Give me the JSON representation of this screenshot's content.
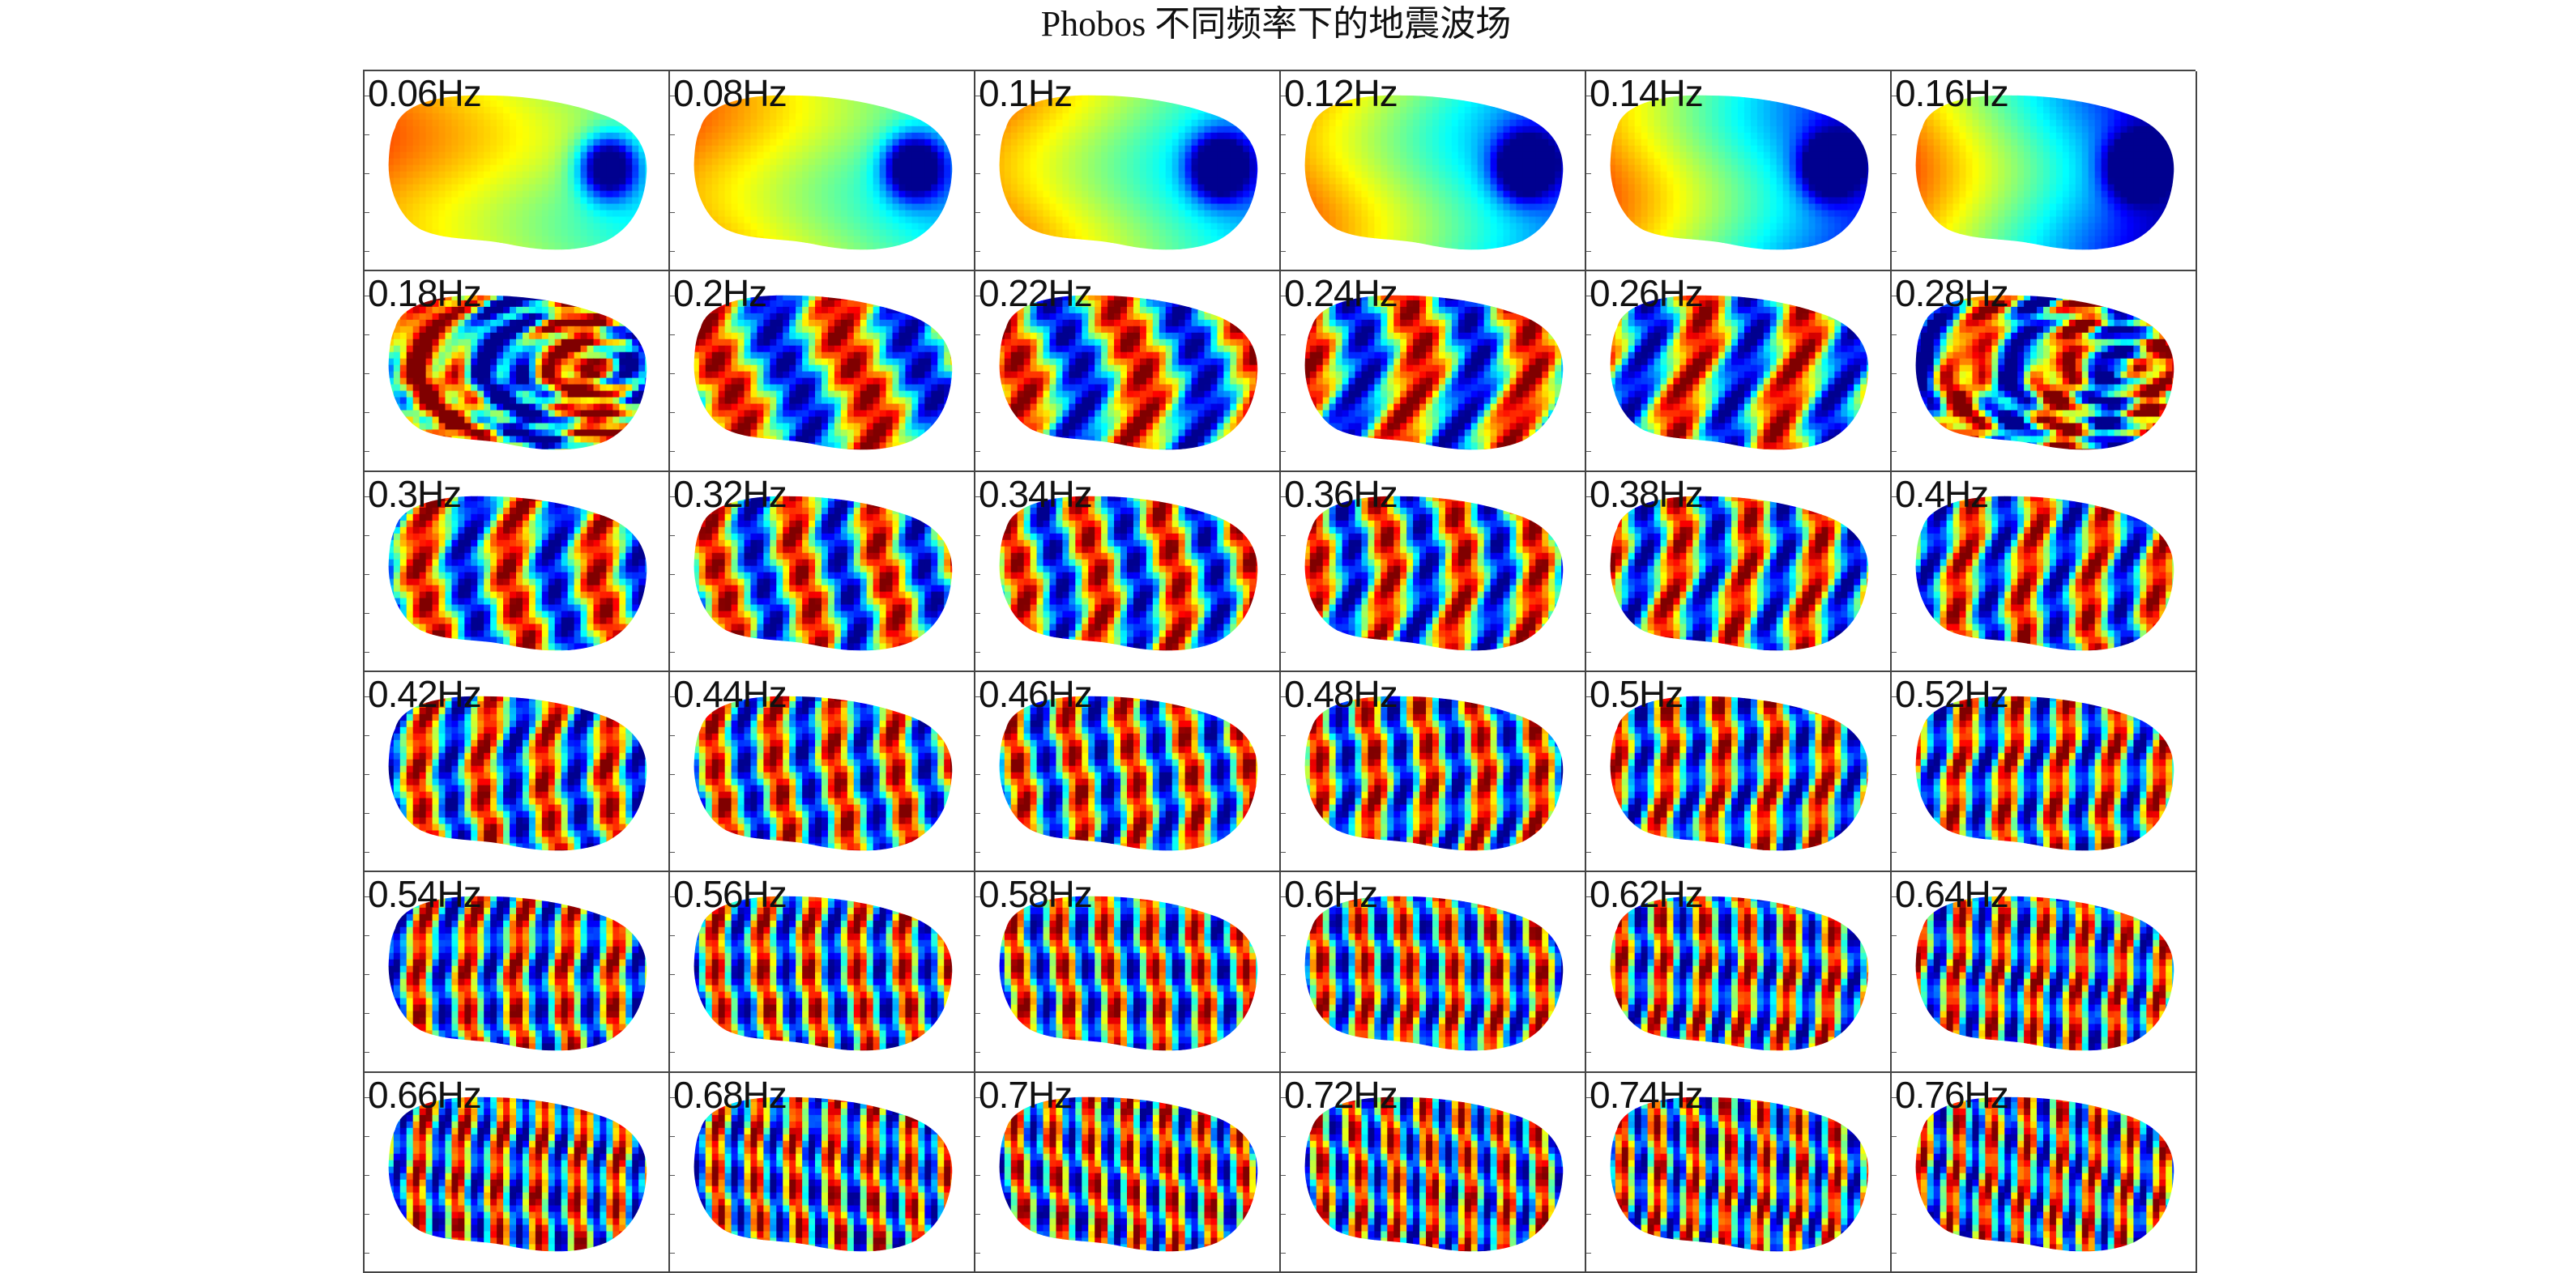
{
  "title": "Phobos 不同频率下的地震波场",
  "grid": {
    "columns": 6,
    "rows": 6
  },
  "panels": [
    {
      "freq": "0.06Hz"
    },
    {
      "freq": "0.08Hz"
    },
    {
      "freq": "0.1Hz"
    },
    {
      "freq": "0.12Hz"
    },
    {
      "freq": "0.14Hz"
    },
    {
      "freq": "0.16Hz"
    },
    {
      "freq": "0.18Hz"
    },
    {
      "freq": "0.2Hz"
    },
    {
      "freq": "0.22Hz"
    },
    {
      "freq": "0.24Hz"
    },
    {
      "freq": "0.26Hz"
    },
    {
      "freq": "0.28Hz"
    },
    {
      "freq": "0.3Hz"
    },
    {
      "freq": "0.32Hz"
    },
    {
      "freq": "0.34Hz"
    },
    {
      "freq": "0.36Hz"
    },
    {
      "freq": "0.38Hz"
    },
    {
      "freq": "0.4Hz"
    },
    {
      "freq": "0.42Hz"
    },
    {
      "freq": "0.44Hz"
    },
    {
      "freq": "0.46Hz"
    },
    {
      "freq": "0.48Hz"
    },
    {
      "freq": "0.5Hz"
    },
    {
      "freq": "0.52Hz"
    },
    {
      "freq": "0.54Hz"
    },
    {
      "freq": "0.56Hz"
    },
    {
      "freq": "0.58Hz"
    },
    {
      "freq": "0.6Hz"
    },
    {
      "freq": "0.62Hz"
    },
    {
      "freq": "0.64Hz"
    },
    {
      "freq": "0.66Hz"
    },
    {
      "freq": "0.68Hz"
    },
    {
      "freq": "0.7Hz"
    },
    {
      "freq": "0.72Hz"
    },
    {
      "freq": "0.74Hz"
    },
    {
      "freq": "0.76Hz"
    }
  ],
  "colormap": [
    "#00008f",
    "#0000ff",
    "#0080ff",
    "#00ffff",
    "#80ff80",
    "#ffff00",
    "#ff8000",
    "#ff0000",
    "#800000"
  ]
}
